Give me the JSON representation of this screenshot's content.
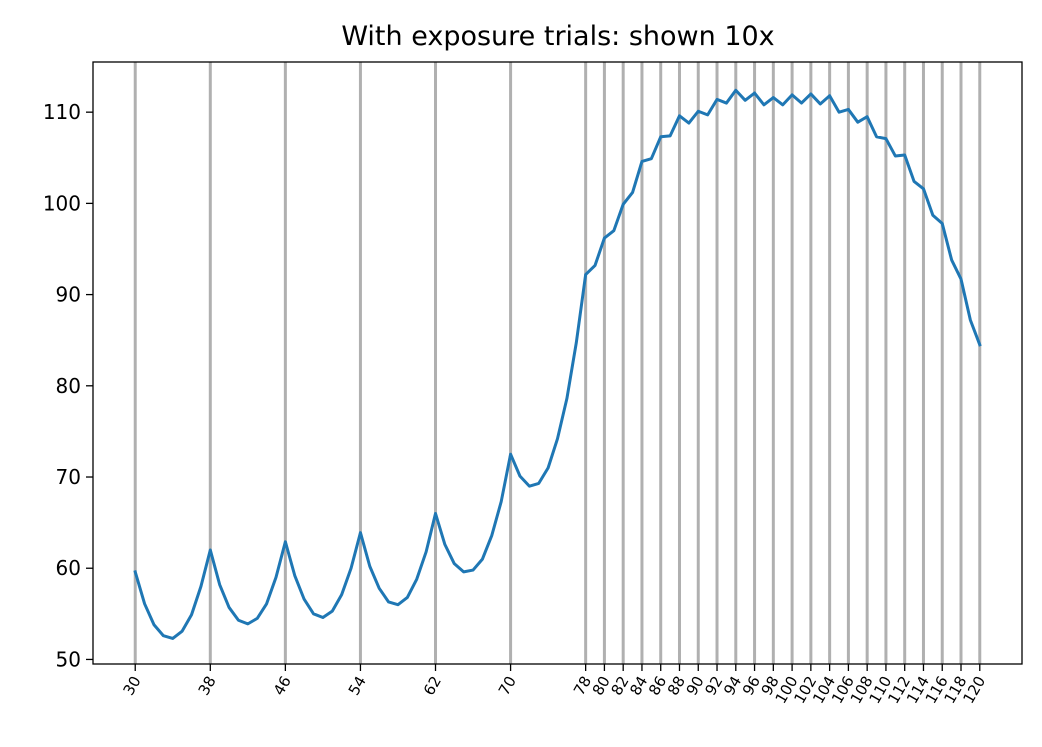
{
  "chart_data": {
    "type": "line",
    "title": "With exposure trials: shown 10x",
    "xlabel": "",
    "ylabel": "",
    "xlim": [
      25.5,
      124.5
    ],
    "ylim": [
      49.5,
      115.5
    ],
    "yticks": [
      50,
      60,
      70,
      80,
      90,
      100,
      110
    ],
    "xticks": [
      30,
      38,
      46,
      54,
      62,
      70,
      78,
      80,
      82,
      84,
      86,
      88,
      90,
      92,
      94,
      96,
      98,
      100,
      102,
      104,
      106,
      108,
      110,
      112,
      114,
      116,
      118,
      120
    ],
    "vertical_lines": [
      30,
      38,
      46,
      54,
      62,
      70,
      78,
      80,
      82,
      84,
      86,
      88,
      90,
      92,
      94,
      96,
      98,
      100,
      102,
      104,
      106,
      108,
      110,
      112,
      114,
      116,
      118,
      120
    ],
    "grid": false,
    "line_color": "#1f77b4",
    "vline_color": "#b0b0b0",
    "series": [
      {
        "x": [
          30,
          31,
          32,
          33,
          34,
          35,
          36,
          37,
          38,
          39,
          40,
          41,
          42,
          43,
          44,
          45,
          46,
          47,
          48,
          49,
          50,
          51,
          52,
          53,
          54,
          55,
          56,
          57,
          58,
          59,
          60,
          61,
          62,
          63,
          64,
          65,
          66,
          67,
          68,
          69,
          70,
          71,
          72,
          73,
          74,
          75,
          76,
          77,
          78,
          79,
          80,
          81,
          82,
          83,
          84,
          85,
          86,
          87,
          88,
          89,
          90,
          91,
          92,
          93,
          94,
          95,
          96,
          97,
          98,
          99,
          100,
          101,
          102,
          103,
          104,
          105,
          106,
          107,
          108,
          109,
          110,
          111,
          112,
          113,
          114,
          115,
          116,
          117,
          118,
          119,
          120
        ],
        "y": [
          59.6,
          56.1,
          53.8,
          52.6,
          52.3,
          53.1,
          54.9,
          58.0,
          62.0,
          58.2,
          55.7,
          54.3,
          53.9,
          54.5,
          56.1,
          59.0,
          62.9,
          59.2,
          56.6,
          55.0,
          54.6,
          55.3,
          57.1,
          60.0,
          63.9,
          60.2,
          57.8,
          56.3,
          56.0,
          56.8,
          58.8,
          61.8,
          66.0,
          62.6,
          60.5,
          59.6,
          59.8,
          61.0,
          63.6,
          67.3,
          72.5,
          70.1,
          69.0,
          69.3,
          71.0,
          74.2,
          78.6,
          84.7,
          92.2,
          93.2,
          96.2,
          97.0,
          99.9,
          101.2,
          104.6,
          104.9,
          107.3,
          107.4,
          109.6,
          108.8,
          110.1,
          109.7,
          111.4,
          111.0,
          112.4,
          111.3,
          112.1,
          110.8,
          111.6,
          110.8,
          111.9,
          111.0,
          112.0,
          110.9,
          111.8,
          110.0,
          110.3,
          108.9,
          109.5,
          107.3,
          107.1,
          105.2,
          105.3,
          102.4,
          101.6,
          98.7,
          97.8,
          93.8,
          91.7,
          87.2,
          84.5
        ]
      }
    ]
  }
}
